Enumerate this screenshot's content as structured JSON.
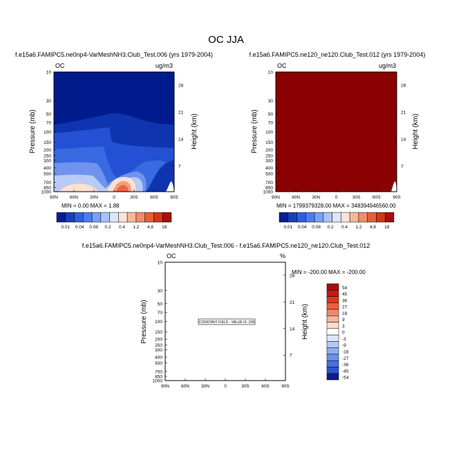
{
  "figure": {
    "title": "OC JJA"
  },
  "colors": {
    "bar_a": [
      "#0a1f8f",
      "#1a3fb8",
      "#2f5fe0",
      "#4e7cf0",
      "#7a9ff5",
      "#a9c2f8",
      "#dbe6fb",
      "#fbe3d6",
      "#f6b89c",
      "#f08d6a",
      "#e85d3c",
      "#d63418",
      "#a50f0f"
    ],
    "bar_diff": [
      "#a50f0f",
      "#c41a12",
      "#dc3a20",
      "#ec5f3c",
      "#f3876a",
      "#f8b49e",
      "#fcdacd",
      "#ffffff",
      "#dbe6fb",
      "#b5c9f7",
      "#8fadf3",
      "#6b8fee",
      "#4a6fe4",
      "#2d52d2",
      "#0a1f8f"
    ],
    "field_a": [
      "#001b8c",
      "#0f34b0",
      "#2450d4",
      "#3a6ae2",
      "#6f93ee",
      "#b7cbf6",
      "#fde0d2",
      "#f49d7e",
      "#ea6440"
    ],
    "field_b": "#8b0000"
  },
  "chart_data": [
    {
      "type": "contour",
      "title": "f.e15a6.FAMIPC5.ne0np4-VarMeshNH3.Club_Test.006 (yrs 1979-2004)",
      "left_label": "OC",
      "units": "ug/m3",
      "ylabel": "Pressure (mb)",
      "ylabel_right": "Height (km)",
      "y_ticks": [
        "10",
        "30",
        "50",
        "70",
        "100",
        "150",
        "200",
        "250",
        "300",
        "400",
        "500",
        "700",
        "850",
        "1000"
      ],
      "y_ticks_right": [
        "28",
        "21",
        "14",
        "7"
      ],
      "x_ticks": [
        "90N",
        "60N",
        "30N",
        "0",
        "30S",
        "60S",
        "90S"
      ],
      "stats": "MIN =   0.00  MAX =   1.88",
      "colorbar_labels": [
        "0.01",
        "0.04",
        "0.08",
        "0.2",
        "0.4",
        "1.2",
        "4.8",
        "18"
      ]
    },
    {
      "type": "contour",
      "title": "f.e15a6.FAMIPC5.ne120_ne120.Club_Test.012 (yrs 1979-2004)",
      "left_label": "OC",
      "units": "ug/m3",
      "ylabel": "Pressure (mb)",
      "ylabel_right": "Height (km)",
      "y_ticks": [
        "10",
        "30",
        "50",
        "70",
        "100",
        "150",
        "200",
        "250",
        "300",
        "400",
        "500",
        "700",
        "850",
        "1000"
      ],
      "y_ticks_right": [
        "28",
        "21",
        "14",
        "7"
      ],
      "x_ticks": [
        "90N",
        "60N",
        "30N",
        "0",
        "30S",
        "60S",
        "90S"
      ],
      "stats": "MIN = 1799379328.00  MAX = 348394946560.00",
      "colorbar_labels": [
        "0.01",
        "0.04",
        "0.08",
        "0.2",
        "0.4",
        "1.2",
        "4.8",
        "18"
      ]
    },
    {
      "type": "contour",
      "title": "f.e15a6.FAMIPC5.ne0np4-VarMeshNH3.Club_Test.006 - f.e15a6.FAMIPC5.ne120_ne120.Club_Test.012",
      "left_label": "OC",
      "units": "%",
      "ylabel": "Pressure (mb)",
      "ylabel_right": "Height (km)",
      "y_ticks": [
        "10",
        "30",
        "50",
        "70",
        "100",
        "150",
        "200",
        "250",
        "300",
        "400",
        "500",
        "700",
        "850",
        "1000"
      ],
      "y_ticks_right": [
        "28",
        "21",
        "14",
        "7"
      ],
      "x_ticks": [
        "90N",
        "60N",
        "30N",
        "0",
        "30S",
        "60S",
        "90S"
      ],
      "stats": "MIN = -200.00  MAX = -200.00",
      "annotation": "CONSTANT FIELD - VALUE IS -200",
      "colorbar_labels": [
        "54",
        "45",
        "36",
        "27",
        "18",
        "9",
        "3",
        "0",
        "-3",
        "-9",
        "-18",
        "-27",
        "-36",
        "-45",
        "-54"
      ]
    }
  ]
}
